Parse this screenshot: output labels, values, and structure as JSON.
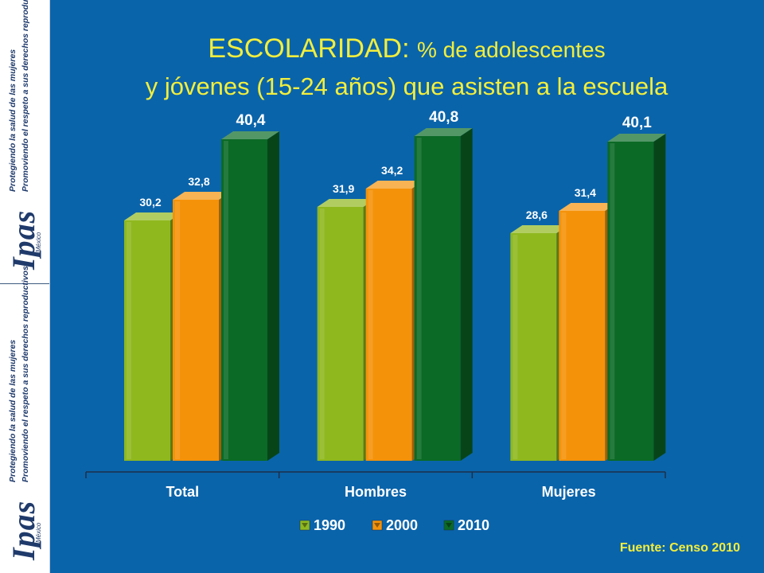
{
  "brand": {
    "logo_text": "Ipas",
    "logo_sub": "México",
    "tagline_1": "Protegiendo la salud de las mujeres",
    "tagline_2": "Promoviendo el respeto a sus derechos reproductivos"
  },
  "title": {
    "line1_main": "ESCOLARIDAD: ",
    "line1_rest": "% de adolescentes",
    "line2": "y jóvenes (15-24 años) que asisten a la escuela"
  },
  "source": "Fuente:  Censo 2010",
  "colors": {
    "s1990": "#8fb81f",
    "s2000": "#f4920a",
    "s2010": "#0b6a26"
  },
  "chart_data": {
    "type": "bar",
    "title": "ESCOLARIDAD: % de adolescentes y jóvenes (15-24 años) que asisten a la escuela",
    "categories": [
      "Total",
      "Hombres",
      "Mujeres"
    ],
    "series": [
      {
        "name": "1990",
        "values": [
          30.2,
          31.9,
          28.6
        ],
        "labels": [
          "30,2",
          "31,9",
          "28,6"
        ]
      },
      {
        "name": "2000",
        "values": [
          32.8,
          34.2,
          31.4
        ],
        "labels": [
          "32,8",
          "34,2",
          "31,4"
        ]
      },
      {
        "name": "2010",
        "values": [
          40.4,
          40.8,
          40.1
        ],
        "labels": [
          "40,4",
          "40,8",
          "40,1"
        ]
      }
    ],
    "ylim": [
      0,
      50
    ],
    "legend": "bottom",
    "grid": false
  }
}
